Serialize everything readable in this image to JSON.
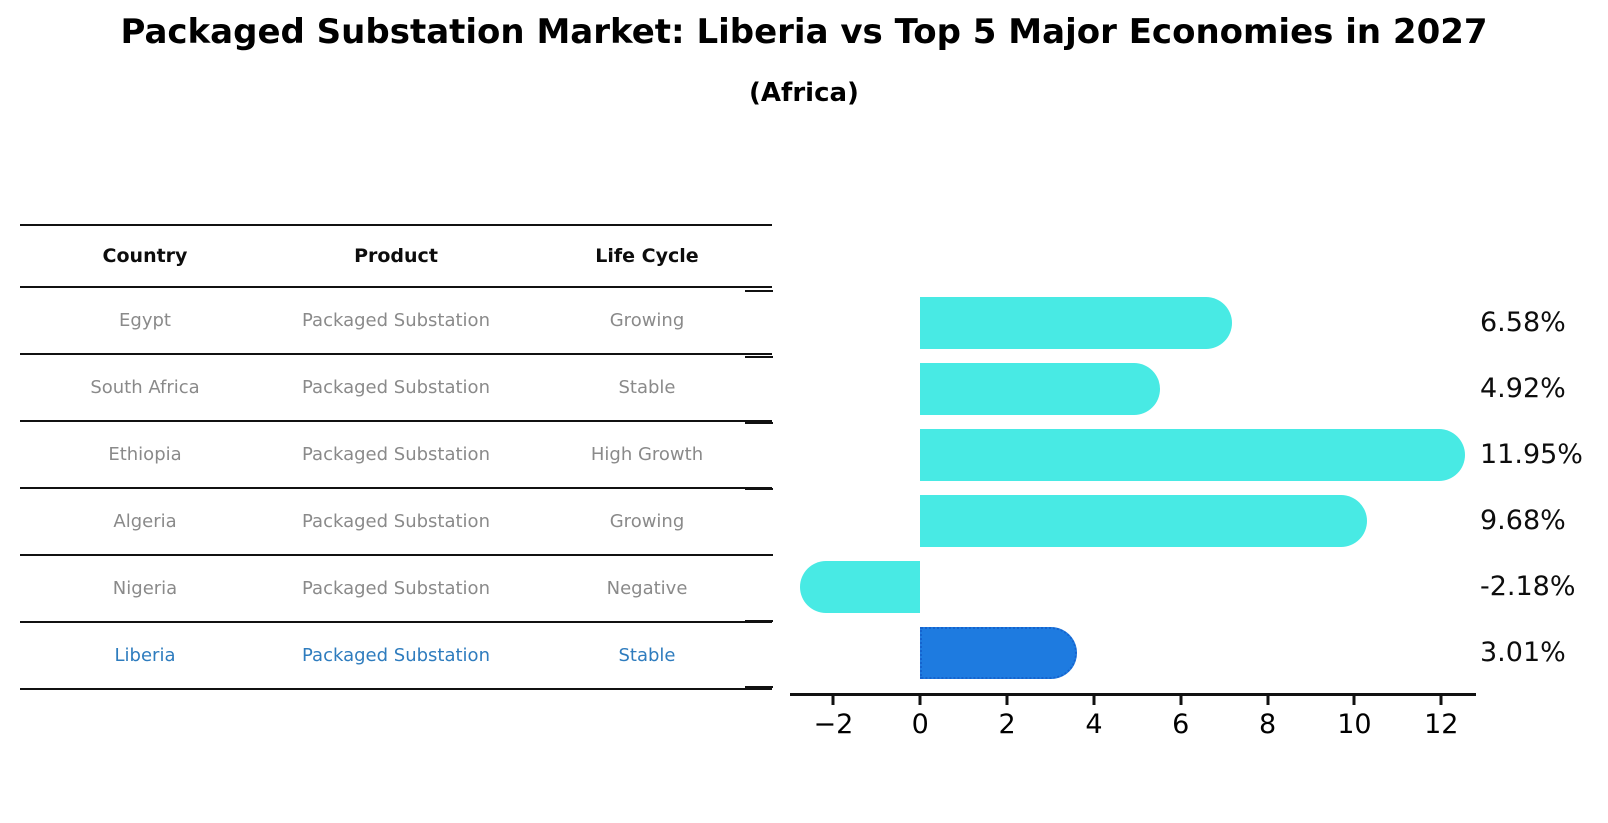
{
  "header": {
    "title": "Packaged Substation Market: Liberia vs Top 5 Major Economies in 2027",
    "subtitle": "(Africa)"
  },
  "table": {
    "headers": [
      "Country",
      "Product",
      "Life Cycle"
    ],
    "rows": [
      {
        "country": "Egypt",
        "product": "Packaged Substation",
        "life_cycle": "Growing",
        "highlight": false
      },
      {
        "country": "South Africa",
        "product": "Packaged Substation",
        "life_cycle": "Stable",
        "highlight": false
      },
      {
        "country": "Ethiopia",
        "product": "Packaged Substation",
        "life_cycle": "High Growth",
        "highlight": false
      },
      {
        "country": "Algeria",
        "product": "Packaged Substation",
        "life_cycle": "Growing",
        "highlight": false
      },
      {
        "country": "Nigeria",
        "product": "Packaged Substation",
        "life_cycle": "Negative",
        "highlight": false
      },
      {
        "country": "Liberia",
        "product": "Packaged Substation",
        "life_cycle": "Stable",
        "highlight": true
      }
    ]
  },
  "chart_data": {
    "type": "bar",
    "orientation": "horizontal",
    "categories": [
      "Egypt",
      "South Africa",
      "Ethiopia",
      "Algeria",
      "Nigeria",
      "Liberia"
    ],
    "values": [
      6.58,
      4.92,
      11.95,
      9.68,
      -2.18,
      3.01
    ],
    "value_labels": [
      "6.58%",
      "4.92%",
      "11.95%",
      "9.68%",
      "-2.18%",
      "3.01%"
    ],
    "x_ticks": [
      -2,
      0,
      2,
      4,
      6,
      8,
      10,
      12
    ],
    "x_tick_labels": [
      "−2",
      "0",
      "2",
      "4",
      "6",
      "8",
      "10",
      "12"
    ],
    "xlim": [
      -3,
      12.8
    ],
    "grid": false,
    "legend": null,
    "highlight_index": 5
  },
  "colors": {
    "bar_cyan": "#48eae4",
    "bar_highlight_blue": "#1e7be0",
    "bar_highlight_border": "#1563ce",
    "table_text_gray": "#8a8a8a",
    "highlight_text_blue": "#2e7cbe",
    "axis_black": "#111111"
  }
}
